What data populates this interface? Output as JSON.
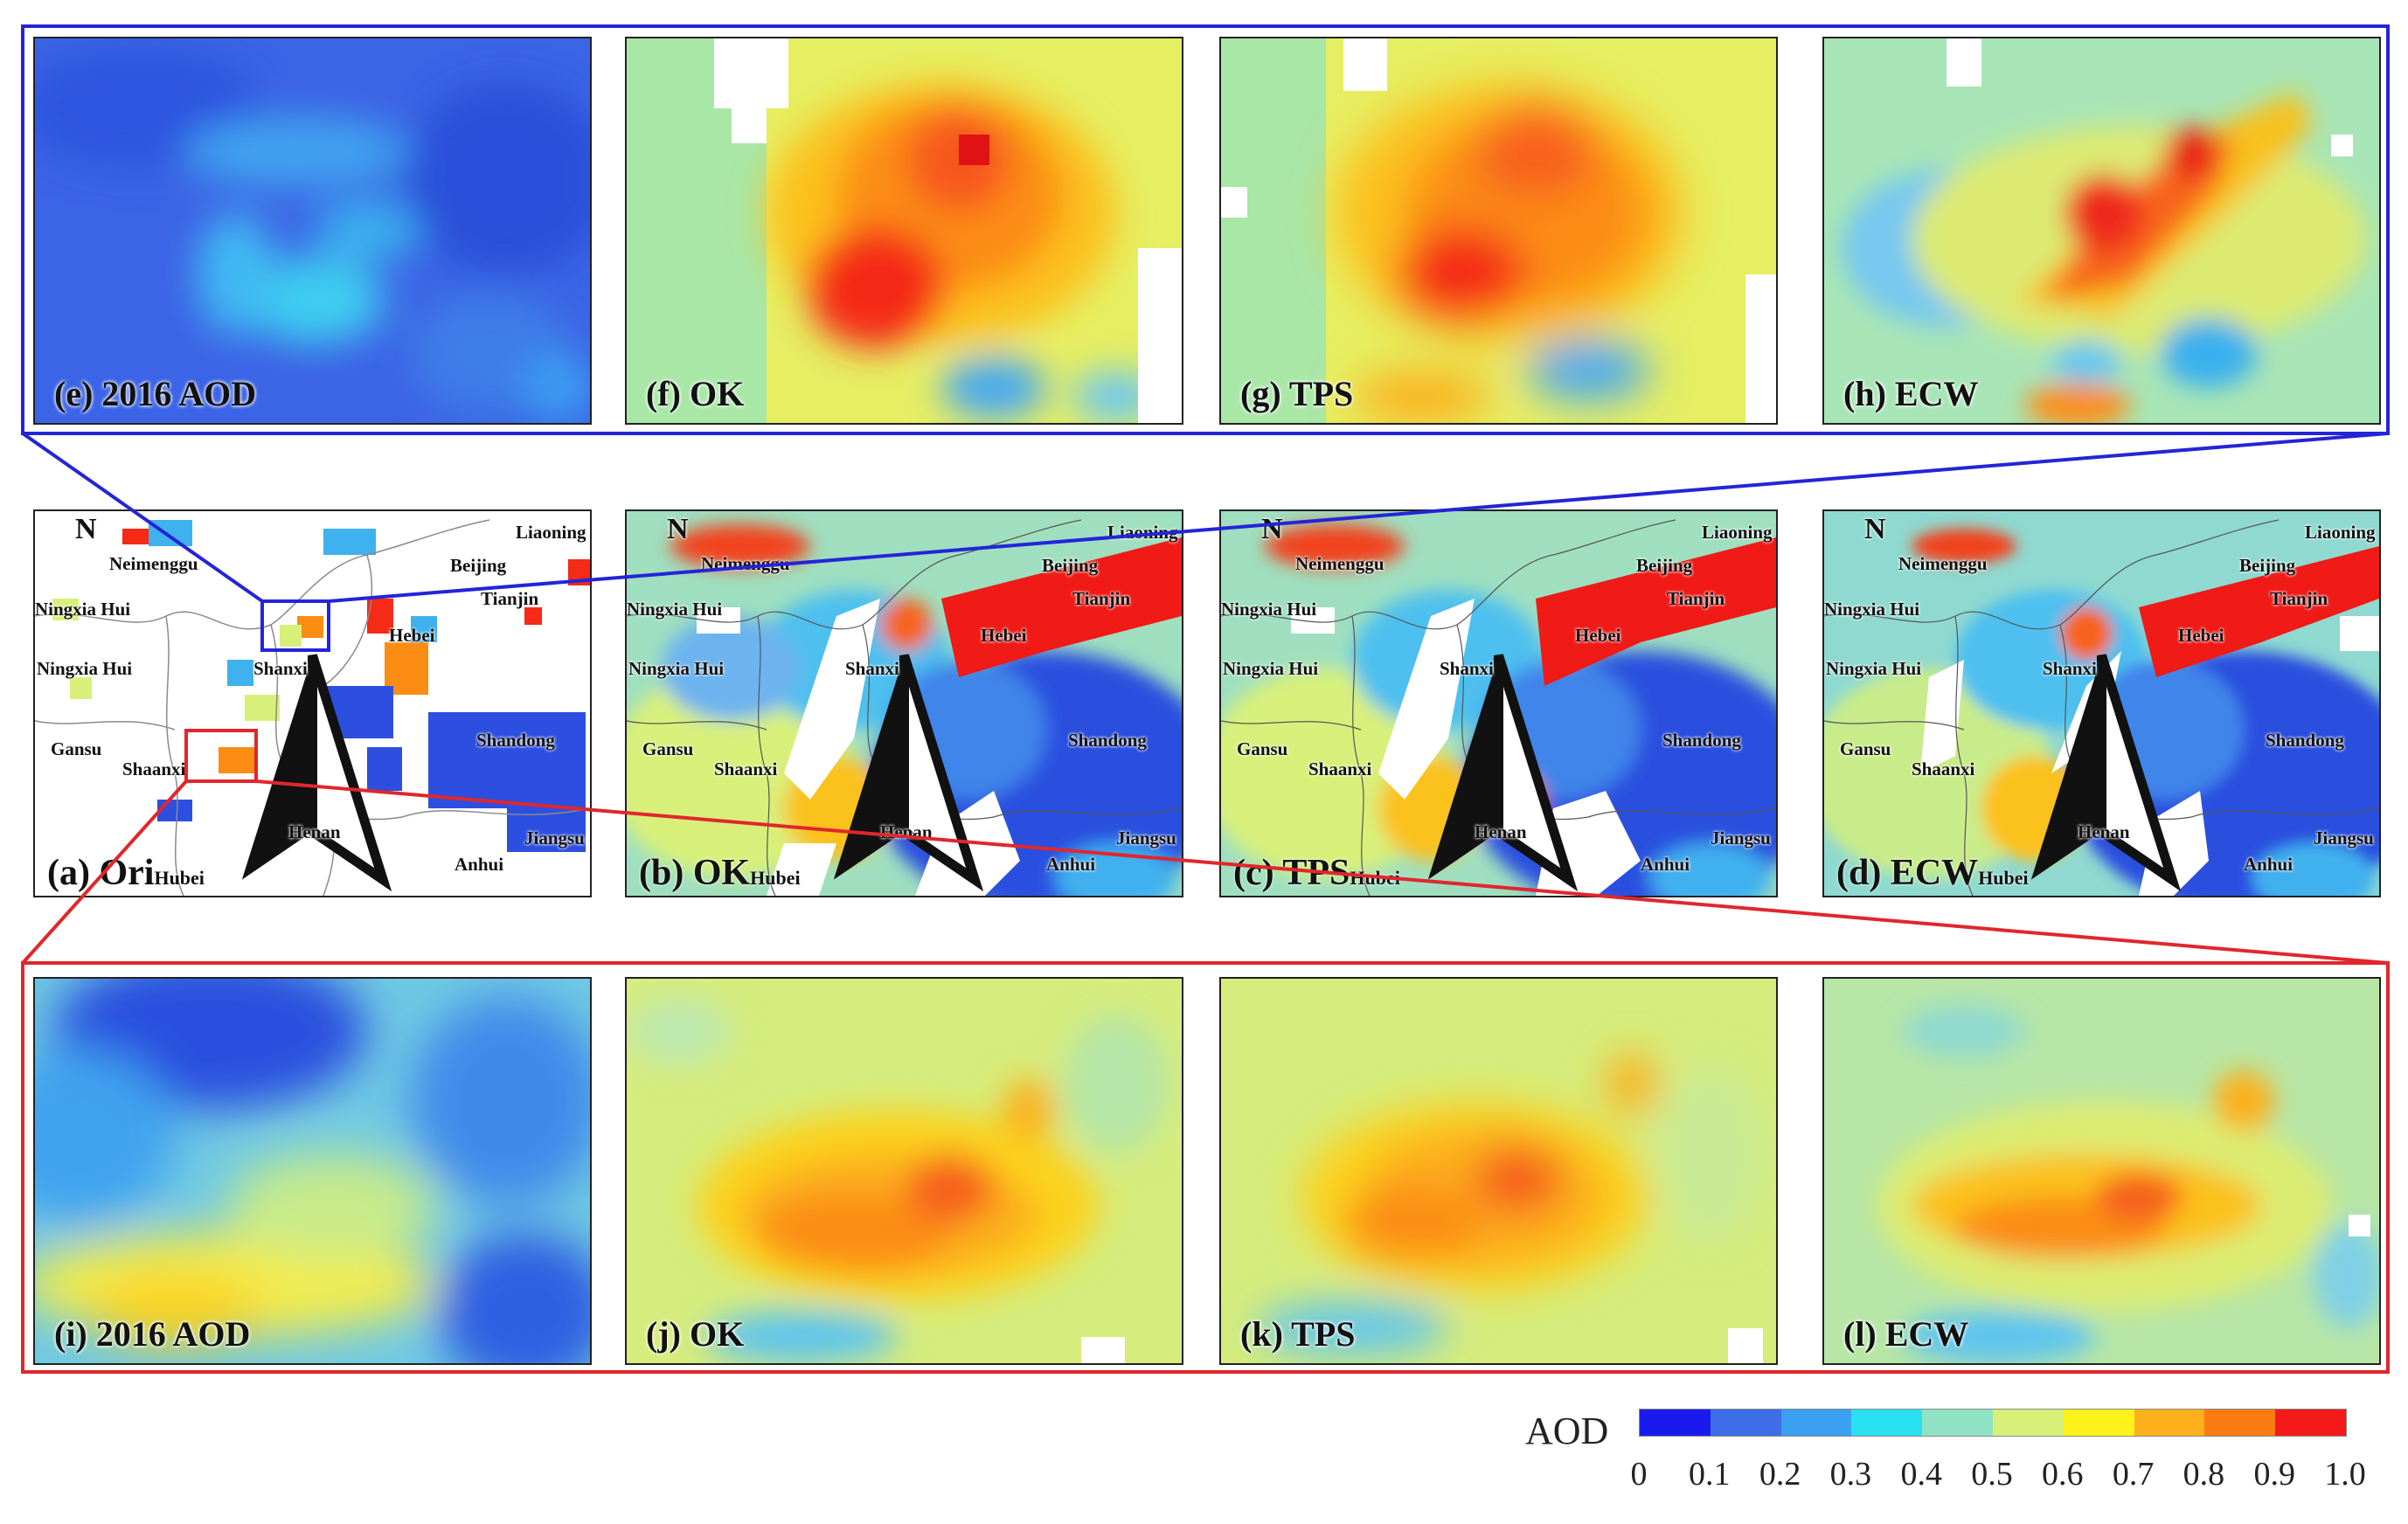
{
  "top_row": [
    {
      "label": "(e) 2016 AOD",
      "style": "blue-smooth"
    },
    {
      "label": "(f) OK",
      "style": "twin-hot"
    },
    {
      "label": "(g) TPS",
      "style": "twin-hot-smooth"
    },
    {
      "label": "(h) ECW",
      "style": "diag-hot"
    }
  ],
  "middle_row": [
    {
      "label": "(a) Ori",
      "sub_label": "Hubei",
      "kind": "sparse"
    },
    {
      "label": "(b) OK",
      "sub_label": "Hubei",
      "kind": "filled"
    },
    {
      "label": "(c) TPS",
      "sub_label": "Hubei",
      "kind": "filled"
    },
    {
      "label": "(d) ECW",
      "sub_label": "Hubei",
      "kind": "filled"
    }
  ],
  "bottom_row": [
    {
      "label": "(i) 2016 AOD",
      "style": "blue-band"
    },
    {
      "label": "(j) OK",
      "style": "warm-blob"
    },
    {
      "label": "(k) TPS",
      "style": "warm-blob-smooth"
    },
    {
      "label": "(l) ECW",
      "style": "warm-band"
    }
  ],
  "north_label": "N",
  "provinces": [
    "Liaoning",
    "Neimenggu",
    "Beijing",
    "Tianjin",
    "Ningxia Hui",
    "Hebei",
    "Ningxia Hui",
    "Shanxi",
    "Gansu",
    "Shaanxi",
    "Shandong",
    "Henan",
    "Jiangsu",
    "Anhui"
  ],
  "colorbar": {
    "title": "AOD",
    "ticks": [
      "0",
      "0.1",
      "0.2",
      "0.3",
      "0.4",
      "0.5",
      "0.6",
      "0.7",
      "0.8",
      "0.9",
      "1.0"
    ],
    "colors": [
      "#1a1aef",
      "#3d6ee8",
      "#3b9ff2",
      "#29e0f2",
      "#8fe3c4",
      "#d8f07a",
      "#fff21a",
      "#fbb01c",
      "#fb7a12",
      "#f51a1a"
    ]
  },
  "inset_frames": {
    "top": "#2424d8",
    "bottom": "#e0272c"
  }
}
